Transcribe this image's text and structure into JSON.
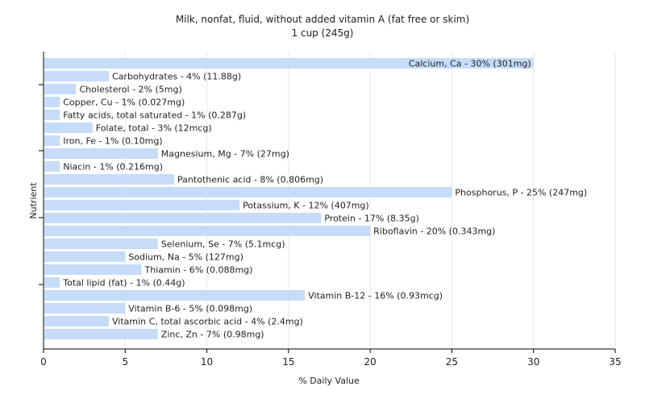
{
  "chart_data": {
    "type": "bar",
    "orientation": "horizontal",
    "title": "Milk, nonfat, fluid, without added vitamin A (fat free or skim)",
    "subtitle": "1 cup (245g)",
    "xlabel": "% Daily Value",
    "ylabel": "Nutrient",
    "xlim": [
      0,
      35
    ],
    "xticks": [
      0,
      5,
      10,
      15,
      20,
      25,
      30,
      35
    ],
    "grid": "vertical",
    "bar_color": "#c6dcf8",
    "categories": [
      "Calcium, Ca",
      "Carbohydrates",
      "Cholesterol",
      "Copper, Cu",
      "Fatty acids, total saturated",
      "Folate, total",
      "Iron, Fe",
      "Magnesium, Mg",
      "Niacin",
      "Pantothenic acid",
      "Phosphorus, P",
      "Potassium, K",
      "Protein",
      "Riboflavin",
      "Selenium, Se",
      "Sodium, Na",
      "Thiamin",
      "Total lipid (fat)",
      "Vitamin B-12",
      "Vitamin B-6",
      "Vitamin C, total ascorbic acid",
      "Zinc, Zn"
    ],
    "values": [
      30,
      4,
      2,
      1,
      1,
      3,
      1,
      7,
      1,
      8,
      25,
      12,
      17,
      20,
      7,
      5,
      6,
      1,
      16,
      5,
      4,
      7
    ],
    "labels": [
      "Calcium, Ca - 30% (301mg)",
      "Carbohydrates - 4% (11.88g)",
      "Cholesterol - 2% (5mg)",
      "Copper, Cu - 1% (0.027mg)",
      "Fatty acids, total saturated - 1% (0.287g)",
      "Folate, total - 3% (12mcg)",
      "Iron, Fe - 1% (0.10mg)",
      "Magnesium, Mg - 7% (27mg)",
      "Niacin - 1% (0.216mg)",
      "Pantothenic acid - 8% (0.806mg)",
      "Phosphorus, P - 25% (247mg)",
      "Potassium, K - 12% (407mg)",
      "Protein - 17% (8.35g)",
      "Riboflavin - 20% (0.343mg)",
      "Selenium, Se - 7% (5.1mcg)",
      "Sodium, Na - 5% (127mg)",
      "Thiamin - 6% (0.088mg)",
      "Total lipid (fat) - 1% (0.44g)",
      "Vitamin B-12 - 16% (0.93mcg)",
      "Vitamin B-6 - 5% (0.098mg)",
      "Vitamin C, total ascorbic acid - 4% (2.4mg)",
      "Zinc, Zn - 7% (0.98mg)"
    ]
  }
}
